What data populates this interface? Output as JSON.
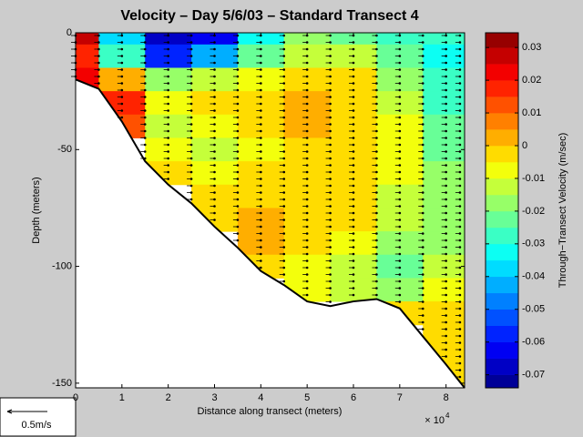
{
  "chart_data": {
    "type": "contour",
    "title": "Velocity – Day 5/6/03 – Standard Transect 4",
    "xlabel": "Distance along transect (meters)",
    "x_multiplier": "× 10",
    "x_multiplier_exp": "4",
    "ylabel": "Depth (meters)",
    "colorbar_label": "Through−Transect Velocity (m/sec)",
    "scale_label": "0.5m/s",
    "xlim": [
      0,
      84000
    ],
    "ylim": [
      -152,
      0
    ],
    "xticks": [
      {
        "value": 0,
        "label": "0"
      },
      {
        "value": 10000,
        "label": "1"
      },
      {
        "value": 20000,
        "label": "2"
      },
      {
        "value": 30000,
        "label": "3"
      },
      {
        "value": 40000,
        "label": "4"
      },
      {
        "value": 50000,
        "label": "5"
      },
      {
        "value": 60000,
        "label": "6"
      },
      {
        "value": 70000,
        "label": "7"
      },
      {
        "value": 80000,
        "label": "8"
      }
    ],
    "yticks": [
      0,
      -50,
      -100,
      -150
    ],
    "clim": [
      -0.074,
      0.0345
    ],
    "cticks": [
      0.03,
      0.02,
      0.01,
      0,
      -0.01,
      -0.02,
      -0.03,
      -0.04,
      -0.05,
      -0.06,
      -0.07
    ],
    "clevels": [
      -0.075,
      -0.07,
      -0.065,
      -0.06,
      -0.055,
      -0.05,
      -0.045,
      -0.04,
      -0.035,
      -0.03,
      -0.025,
      -0.02,
      -0.015,
      -0.01,
      -0.005,
      0,
      0.005,
      0.01,
      0.015,
      0.02,
      0.025,
      0.03,
      0.035
    ],
    "x": [
      0,
      10000,
      20000,
      30000,
      40000,
      50000,
      60000,
      70000,
      80000
    ],
    "depths": [
      0,
      -10,
      -20,
      -30,
      -40,
      -50,
      -60,
      -70,
      -80,
      -90,
      -100,
      -110,
      -120,
      -130,
      -140,
      -150
    ],
    "velocity": [
      [
        0.025,
        -0.04,
        -0.07,
        -0.065,
        -0.035,
        -0.02,
        -0.025,
        -0.03,
        -0.03
      ],
      [
        0.015,
        -0.03,
        -0.06,
        -0.045,
        -0.025,
        -0.015,
        -0.015,
        -0.025,
        -0.035
      ],
      [
        0.02,
        0.0,
        -0.02,
        -0.015,
        -0.01,
        -0.005,
        -0.005,
        -0.02,
        -0.03
      ],
      [
        null,
        0.015,
        -0.01,
        -0.005,
        -0.005,
        0,
        -0.005,
        -0.015,
        -0.03
      ],
      [
        null,
        0.01,
        -0.015,
        -0.01,
        -0.005,
        0,
        -0.005,
        -0.01,
        -0.025
      ],
      [
        null,
        null,
        -0.01,
        -0.015,
        -0.01,
        -0.005,
        -0.005,
        -0.01,
        -0.025
      ],
      [
        null,
        null,
        -0.005,
        -0.01,
        -0.005,
        -0.005,
        -0.005,
        -0.01,
        -0.02
      ],
      [
        null,
        null,
        null,
        -0.005,
        -0.005,
        -0.005,
        -0.005,
        -0.015,
        -0.02
      ],
      [
        null,
        null,
        null,
        -0.005,
        0,
        -0.005,
        -0.005,
        -0.015,
        -0.02
      ],
      [
        null,
        null,
        null,
        null,
        0,
        -0.005,
        -0.01,
        -0.02,
        -0.02
      ],
      [
        null,
        null,
        null,
        null,
        -0.005,
        -0.01,
        -0.015,
        -0.025,
        -0.015
      ],
      [
        null,
        null,
        null,
        null,
        null,
        -0.01,
        -0.015,
        -0.02,
        -0.01
      ],
      [
        null,
        null,
        null,
        null,
        null,
        null,
        null,
        -0.005,
        -0.005
      ],
      [
        null,
        null,
        null,
        null,
        null,
        null,
        null,
        null,
        -0.005
      ],
      [
        null,
        null,
        null,
        null,
        null,
        null,
        null,
        null,
        -0.005
      ],
      [
        null,
        null,
        null,
        null,
        null,
        null,
        null,
        null,
        -0.005
      ]
    ],
    "bottom_x": [
      0,
      5000,
      10000,
      15000,
      20000,
      25000,
      30000,
      35000,
      40000,
      45000,
      50000,
      55000,
      60000,
      65000,
      70000,
      75000,
      80000,
      84000
    ],
    "bottom_depth": [
      -20,
      -24,
      -38,
      -55,
      -65,
      -73,
      -83,
      -92,
      -102,
      -108,
      -115,
      -117,
      -115,
      -114,
      -118,
      -130,
      -142,
      -152
    ],
    "stations": [
      0,
      5000,
      10000,
      15000,
      20000,
      25000,
      30000,
      35000,
      40000,
      45000,
      50000,
      55000,
      60000,
      65000,
      70000,
      75000,
      80000,
      83000
    ]
  }
}
